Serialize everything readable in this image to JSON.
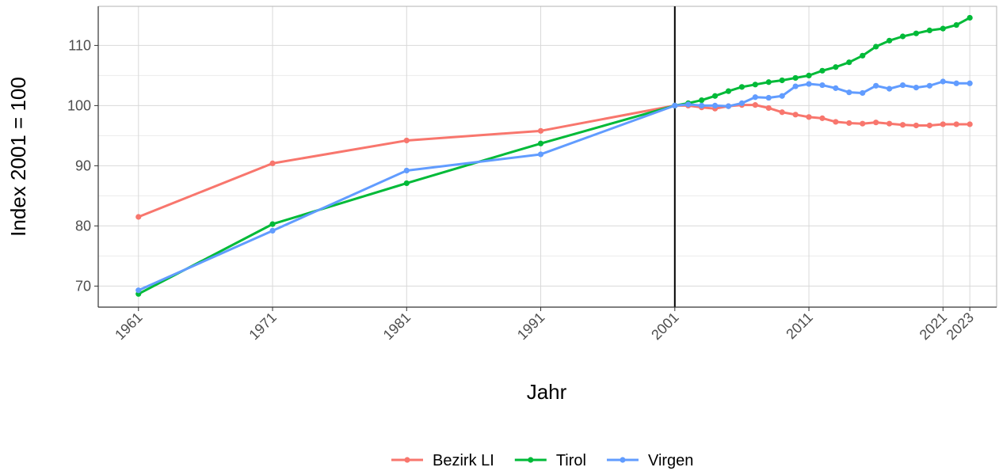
{
  "chart_data": {
    "type": "line",
    "xlabel": "Jahr",
    "ylabel": "Index 2001 = 100",
    "xlim": [
      1958,
      2025
    ],
    "ylim": [
      66.5,
      116.5
    ],
    "x_ticks": [
      1961,
      1971,
      1981,
      1991,
      2001,
      2011,
      2021,
      2023
    ],
    "x_tick_labels": [
      "1961",
      "1971",
      "1981",
      "1991",
      "2001",
      "2011",
      "2021",
      "2023"
    ],
    "y_ticks": [
      70,
      80,
      90,
      100,
      110
    ],
    "y_tick_labels": [
      "70",
      "80",
      "90",
      "100",
      "110"
    ],
    "reference_line_x": 2001,
    "grid": true,
    "legend_position": "bottom",
    "x": [
      1961,
      1971,
      1981,
      1991,
      2001,
      2002,
      2003,
      2004,
      2005,
      2006,
      2007,
      2008,
      2009,
      2010,
      2011,
      2012,
      2013,
      2014,
      2015,
      2016,
      2017,
      2018,
      2019,
      2020,
      2021,
      2022,
      2023
    ],
    "series": [
      {
        "name": "Bezirk LI",
        "color": "#F8766D",
        "values": [
          81.5,
          90.4,
          94.2,
          95.8,
          100,
          100,
          99.7,
          99.5,
          99.9,
          100.1,
          100.1,
          99.6,
          98.9,
          98.5,
          98.1,
          97.9,
          97.3,
          97.1,
          97.0,
          97.2,
          97.0,
          96.8,
          96.7,
          96.7,
          96.9,
          96.9,
          96.9
        ]
      },
      {
        "name": "Tirol",
        "color": "#00BA38",
        "values": [
          68.7,
          80.3,
          87.1,
          93.7,
          100,
          100.4,
          100.9,
          101.6,
          102.4,
          103.1,
          103.5,
          103.9,
          104.2,
          104.6,
          105.0,
          105.8,
          106.4,
          107.2,
          108.3,
          109.8,
          110.8,
          111.5,
          112.0,
          112.5,
          112.8,
          113.4,
          114.6
        ]
      },
      {
        "name": "Virgen",
        "color": "#619CFF",
        "values": [
          69.3,
          79.2,
          89.2,
          91.9,
          100,
          100.2,
          100.0,
          100.0,
          99.9,
          100.4,
          101.4,
          101.3,
          101.6,
          103.2,
          103.6,
          103.4,
          102.9,
          102.2,
          102.1,
          103.3,
          102.8,
          103.4,
          103.0,
          103.3,
          104.0,
          103.7,
          103.7
        ]
      }
    ]
  }
}
